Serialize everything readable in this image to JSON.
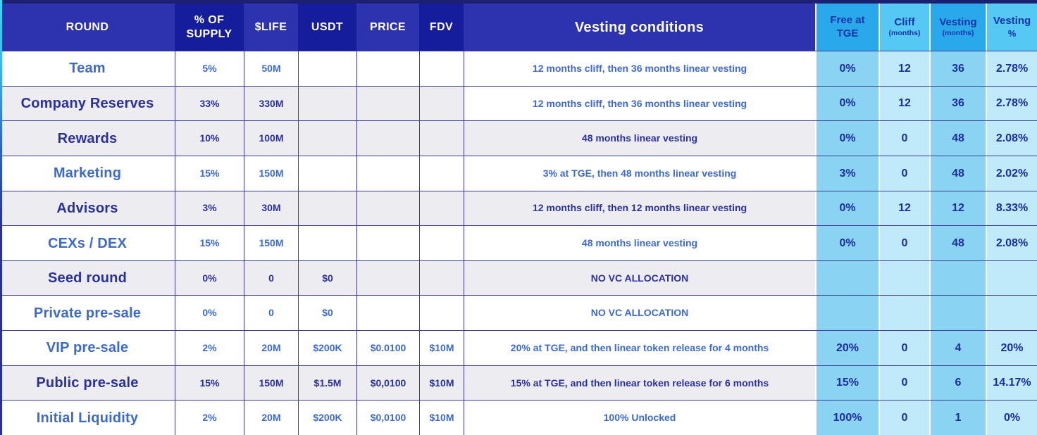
{
  "chart_data": {
    "type": "table",
    "columns": [
      {
        "label": "ROUND"
      },
      {
        "label": "% OF SUPPLY"
      },
      {
        "label": "$LIFE"
      },
      {
        "label": "USDT"
      },
      {
        "label": "PRICE"
      },
      {
        "label": "FDV"
      },
      {
        "label": "Vesting conditions"
      },
      {
        "label": "Free at TGE"
      },
      {
        "label": "Cliff",
        "sub": "(months)"
      },
      {
        "label": "Vesting",
        "sub": "(months)"
      },
      {
        "label": "Vesting",
        "sub": "%"
      }
    ],
    "rows": [
      {
        "round": "Team",
        "supply": "5%",
        "life": "50M",
        "usdt": "",
        "price": "",
        "fdv": "",
        "vesting": "12 months cliff, then 36 months linear vesting",
        "free": "0%",
        "cliff": "12",
        "vmonths": "36",
        "vpct": "2.78%",
        "shade": "light",
        "vshade": "light"
      },
      {
        "round": "Company Reserves",
        "supply": "33%",
        "life": "330M",
        "usdt": "",
        "price": "",
        "fdv": "",
        "vesting": "12 months cliff, then 36 months linear vesting",
        "free": "0%",
        "cliff": "12",
        "vmonths": "36",
        "vpct": "2.78%",
        "shade": "dark",
        "vshade": "light"
      },
      {
        "round": "Rewards",
        "supply": "10%",
        "life": "100M",
        "usdt": "",
        "price": "",
        "fdv": "",
        "vesting": "48 months linear vesting",
        "free": "0%",
        "cliff": "0",
        "vmonths": "48",
        "vpct": "2.08%",
        "shade": "dark",
        "vshade": "dark"
      },
      {
        "round": "Marketing",
        "supply": "15%",
        "life": "150M",
        "usdt": "",
        "price": "",
        "fdv": "",
        "vesting": "3% at TGE, then 48 months linear vesting",
        "free": "3%",
        "cliff": "0",
        "vmonths": "48",
        "vpct": "2.02%",
        "shade": "light",
        "vshade": "light"
      },
      {
        "round": "Advisors",
        "supply": "3%",
        "life": "30M",
        "usdt": "",
        "price": "",
        "fdv": "",
        "vesting": "12 months cliff, then 12 months linear vesting",
        "free": "0%",
        "cliff": "12",
        "vmonths": "12",
        "vpct": "8.33%",
        "shade": "dark",
        "vshade": "dark"
      },
      {
        "round": "CEXs / DEX",
        "supply": "15%",
        "life": "150M",
        "usdt": "",
        "price": "",
        "fdv": "",
        "vesting": "48 months linear vesting",
        "free": "0%",
        "cliff": "0",
        "vmonths": "48",
        "vpct": "2.08%",
        "shade": "light",
        "vshade": "light"
      },
      {
        "round": "Seed round",
        "supply": "0%",
        "life": "0",
        "usdt": "$0",
        "price": "",
        "fdv": "",
        "vesting": "NO VC ALLOCATION",
        "free": "",
        "cliff": "",
        "vmonths": "",
        "vpct": "",
        "shade": "dark",
        "vshade": "dark"
      },
      {
        "round": "Private pre-sale",
        "supply": "0%",
        "life": "0",
        "usdt": "$0",
        "price": "",
        "fdv": "",
        "vesting": "NO VC ALLOCATION",
        "free": "",
        "cliff": "",
        "vmonths": "",
        "vpct": "",
        "shade": "light",
        "vshade": "light"
      },
      {
        "round": "VIP pre-sale",
        "supply": "2%",
        "life": "20M",
        "usdt": "$200K",
        "price": "$0.0100",
        "fdv": "$10M",
        "vesting": "20% at TGE, and then linear token release for 4 months",
        "free": "20%",
        "cliff": "0",
        "vmonths": "4",
        "vpct": "20%",
        "shade": "light",
        "vshade": "light"
      },
      {
        "round": "Public pre-sale",
        "supply": "15%",
        "life": "150M",
        "usdt": "$1.5M",
        "price": "$0,0100",
        "fdv": "$10M",
        "vesting": "15% at TGE, and then linear token release for 6 months",
        "free": "15%",
        "cliff": "0",
        "vmonths": "6",
        "vpct": "14.17%",
        "shade": "dark",
        "vshade": "dark"
      },
      {
        "round": "Initial Liquidity",
        "supply": "2%",
        "life": "20M",
        "usdt": "$200K",
        "price": "$0,0100",
        "fdv": "$10M",
        "vesting": "100% Unlocked",
        "free": "100%",
        "cliff": "0",
        "vmonths": "1",
        "vpct": "0%",
        "shade": "light",
        "vshade": "light"
      }
    ]
  },
  "colors": {
    "header_indigo": "#2d33af",
    "header_indigo_dark": "#161d9d",
    "header_top_strip": "#1b2070",
    "blue_header_a": "#29a8ec",
    "blue_header_b": "#55c8f3",
    "blue_body_a": "#8bd3f3",
    "blue_body_b": "#c0e9fa",
    "row_white": "#ffffff",
    "row_gray": "#edecf1",
    "text_light_blue": "#3d6ace",
    "text_dark_navy": "#2b309f",
    "text_blue_section": "#1c2d9e",
    "grid_line": "#3a3e96",
    "edge_accent": "#42d2f7"
  }
}
